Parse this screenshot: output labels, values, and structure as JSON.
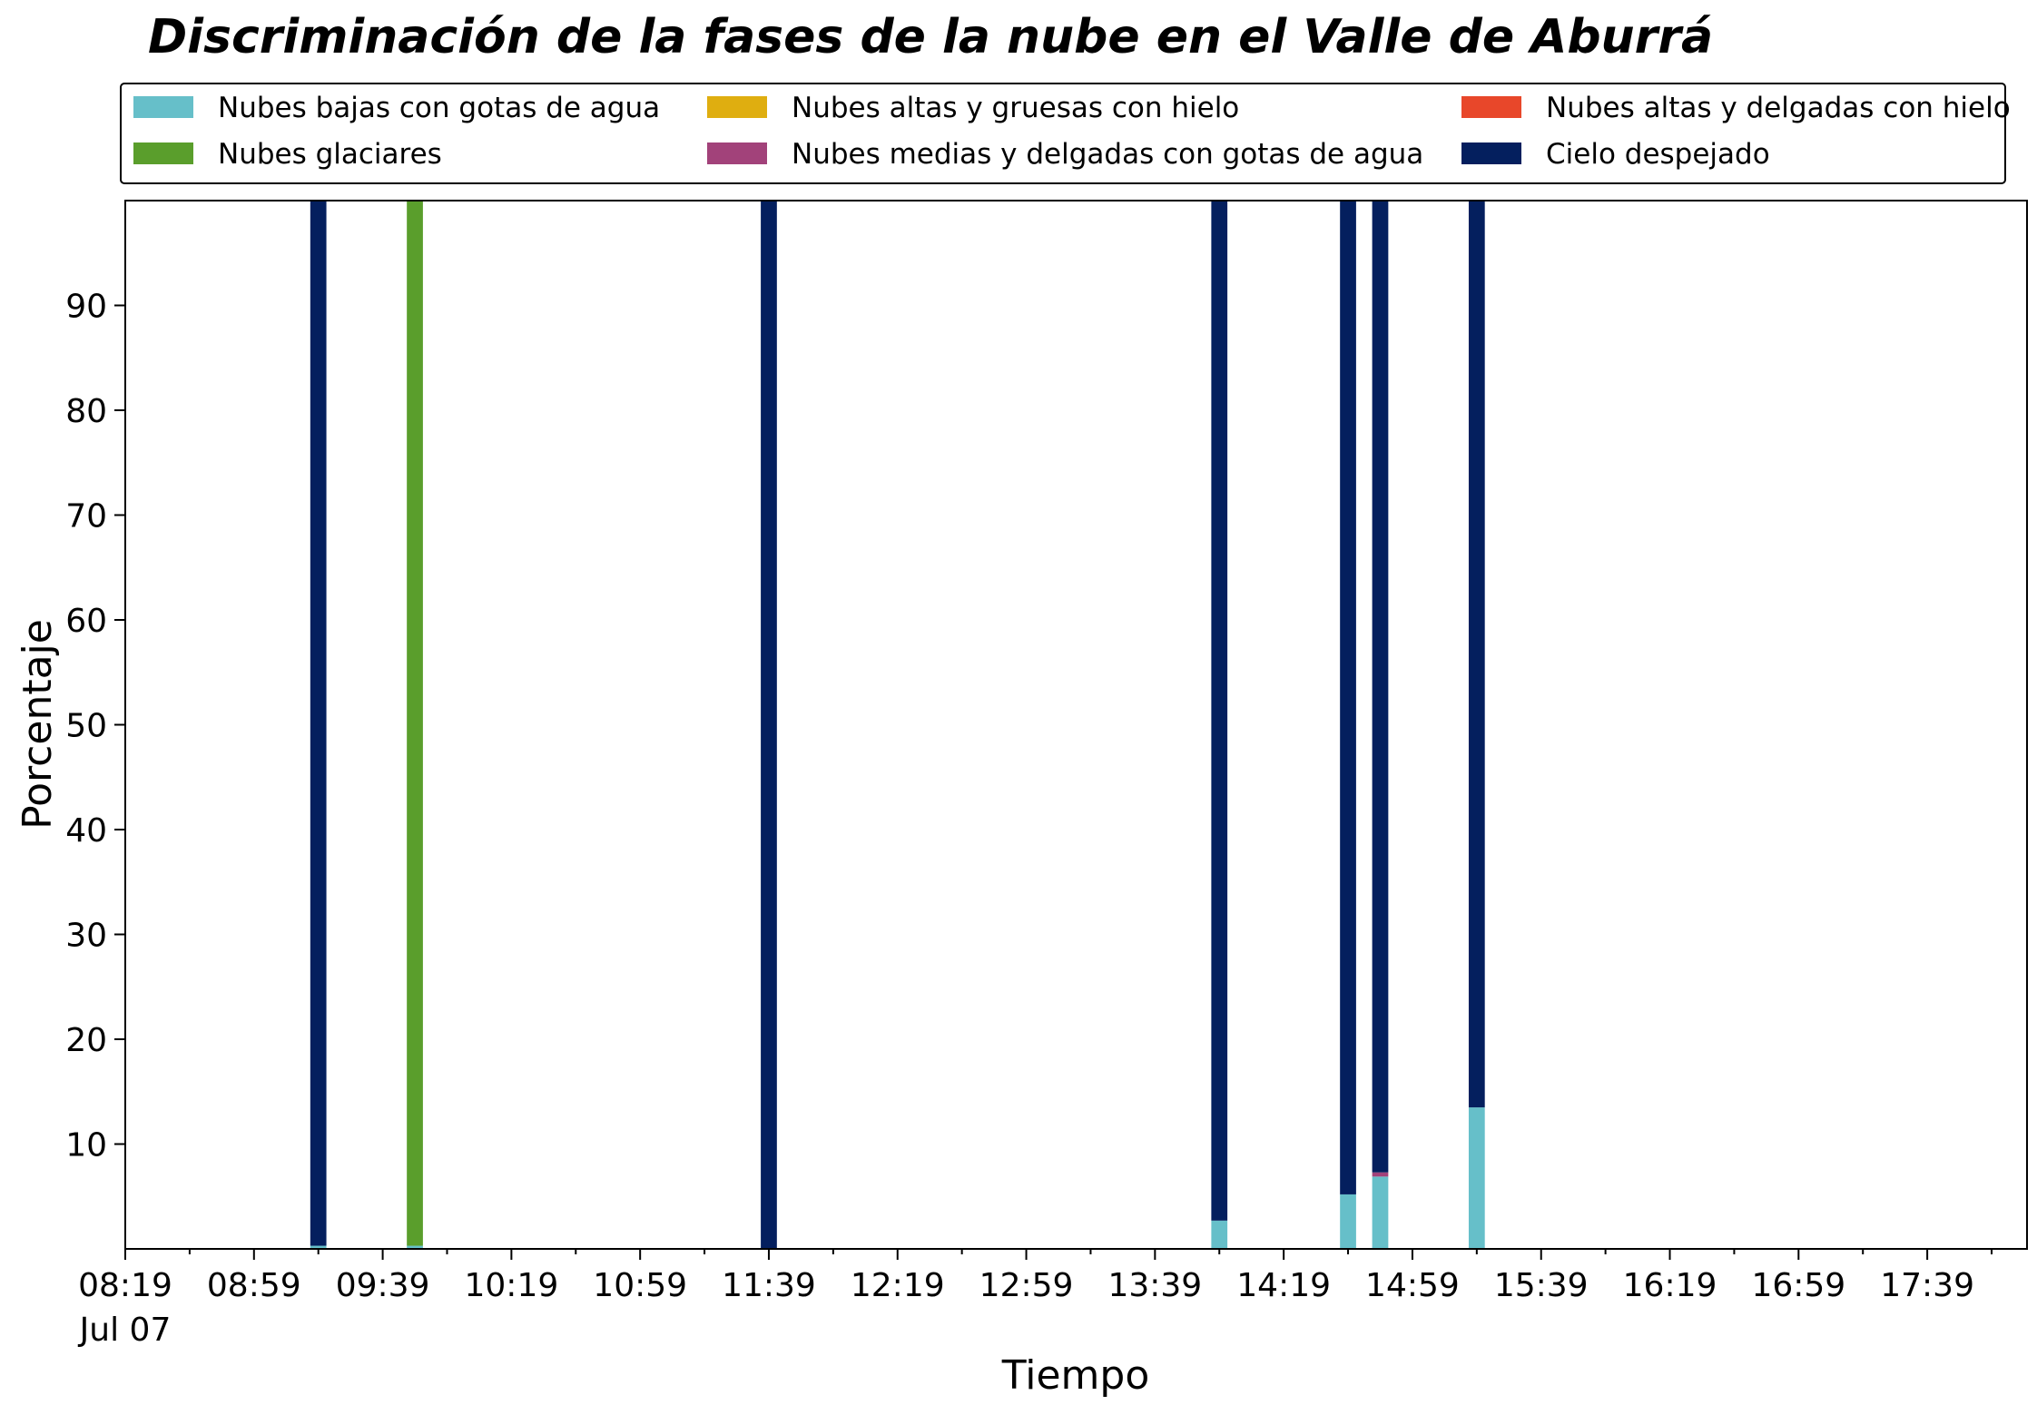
{
  "chart_data": {
    "type": "bar",
    "stacked": true,
    "title": "Discriminación de la fases de la nube en el Valle de Aburrá",
    "xlabel": "Tiempo",
    "ylabel": "Porcentaje",
    "ylim": [
      0,
      100
    ],
    "yticks": [
      10,
      20,
      30,
      40,
      50,
      60,
      70,
      80,
      90
    ],
    "x_range": [
      "08:19",
      "18:10"
    ],
    "x_ticks": [
      "08:19",
      "08:59",
      "09:39",
      "10:19",
      "10:59",
      "11:39",
      "12:19",
      "12:59",
      "13:39",
      "14:19",
      "14:59",
      "15:39",
      "16:19",
      "16:59",
      "17:39"
    ],
    "x_date_label": "Jul 07",
    "bar_width_minutes": 5,
    "grid": false,
    "legend_placement": "top",
    "series": [
      {
        "name": "Nubes bajas con gotas de agua",
        "color": "#66bfc9"
      },
      {
        "name": "Nubes glaciares",
        "color": "#5a9e2c"
      },
      {
        "name": "Nubes altas y gruesas con hielo",
        "color": "#dfae10"
      },
      {
        "name": "Nubes medias y delgadas con gotas de agua",
        "color": "#a2427a"
      },
      {
        "name": "Nubes altas y delgadas con hielo",
        "color": "#e8472a"
      },
      {
        "name": "Cielo despejado",
        "color": "#041f5e"
      }
    ],
    "bars": [
      {
        "time": "09:19",
        "values": [
          0.3,
          0,
          0,
          0,
          0,
          99.7
        ]
      },
      {
        "time": "09:49",
        "values": [
          0.3,
          99.7,
          0,
          0,
          0,
          0
        ]
      },
      {
        "time": "11:39",
        "values": [
          0,
          0,
          0,
          0,
          0,
          100
        ]
      },
      {
        "time": "13:59",
        "values": [
          2.7,
          0,
          0,
          0,
          0,
          97.3
        ]
      },
      {
        "time": "14:39",
        "values": [
          5.2,
          0,
          0,
          0,
          0,
          94.8
        ]
      },
      {
        "time": "14:49",
        "values": [
          6.9,
          0,
          0,
          0.4,
          0,
          92.7
        ]
      },
      {
        "time": "15:19",
        "values": [
          13.5,
          0,
          0,
          0,
          0,
          86.5
        ]
      }
    ]
  }
}
